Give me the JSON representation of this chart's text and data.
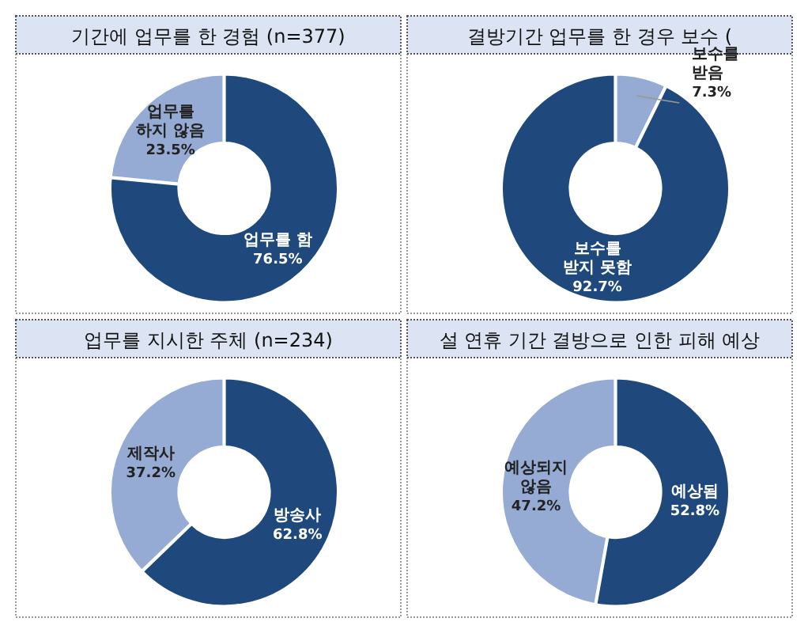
{
  "chart_data": [
    {
      "type": "donut",
      "title": "기간에 업무를 한 경험 (n=377)",
      "categories": [
        "업무를 함",
        "업무를 하지 않음"
      ],
      "values": [
        76.5,
        23.5
      ],
      "value_labels": [
        "76.5%",
        "23.5%"
      ],
      "colors": [
        "#1f497d",
        "#95abd3"
      ],
      "legend": false
    },
    {
      "type": "donut",
      "title": "결방기간 업무를 한 경우 보수 (",
      "categories": [
        "보수를 받음",
        "보수를 받지 못함"
      ],
      "values": [
        7.3,
        92.7
      ],
      "value_labels": [
        "7.3%",
        "92.7%"
      ],
      "colors": [
        "#95abd3",
        "#1f497d"
      ],
      "legend": false
    },
    {
      "type": "donut",
      "title": "업무를 지시한 주체 (n=234)",
      "categories": [
        "방송사",
        "제작사"
      ],
      "values": [
        62.8,
        37.2
      ],
      "value_labels": [
        "62.8%",
        "37.2%"
      ],
      "colors": [
        "#1f497d",
        "#95abd3"
      ],
      "legend": false
    },
    {
      "type": "donut",
      "title": "설 연휴 기간 결방으로 인한 피해 예상",
      "categories": [
        "예상됨",
        "예상되지 않음"
      ],
      "values": [
        52.8,
        47.2
      ],
      "value_labels": [
        "52.8%",
        "47.2%"
      ],
      "colors": [
        "#1f497d",
        "#95abd3"
      ],
      "legend": false
    }
  ]
}
